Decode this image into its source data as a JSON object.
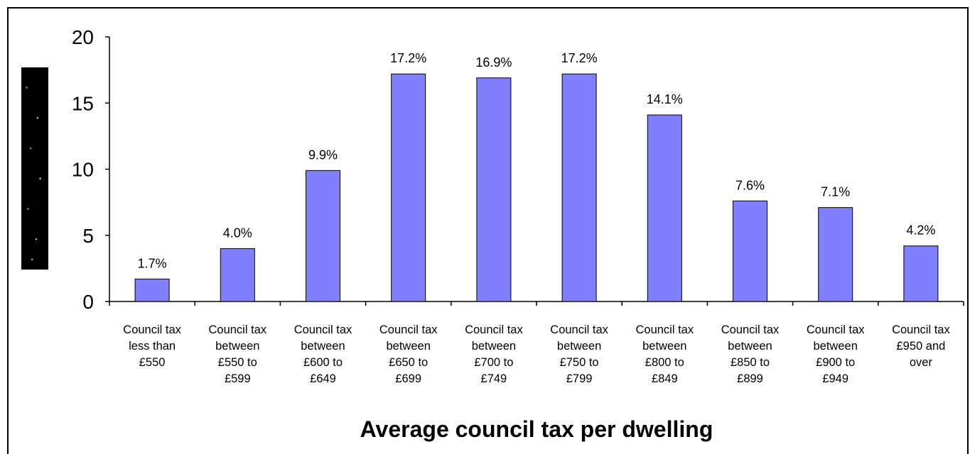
{
  "chart_data": {
    "type": "bar",
    "categories": [
      "Council tax less than £550",
      "Council tax between £550 to £599",
      "Council tax between £600 to £649",
      "Council tax between £650 to £699",
      "Council tax between £700 to £749",
      "Council tax between £750 to £799",
      "Council tax between £800 to £849",
      "Council tax between £850 to £899",
      "Council tax between £900 to £949",
      "Council tax £950 and over"
    ],
    "category_lines": [
      [
        "Council tax",
        "less than",
        "£550"
      ],
      [
        "Council tax",
        "between",
        "£550 to",
        "£599"
      ],
      [
        "Council tax",
        "between",
        "£600 to",
        "£649"
      ],
      [
        "Council tax",
        "between",
        "£650 to",
        "£699"
      ],
      [
        "Council tax",
        "between",
        "£700 to",
        "£749"
      ],
      [
        "Council tax",
        "between",
        "£750 to",
        "£799"
      ],
      [
        "Council tax",
        "between",
        "£800 to",
        "£849"
      ],
      [
        "Council tax",
        "between",
        "£850 to",
        "£899"
      ],
      [
        "Council tax",
        "between",
        "£900 to",
        "£949"
      ],
      [
        "Council tax",
        "£950 and",
        "over"
      ]
    ],
    "values": [
      1.7,
      4.0,
      9.9,
      17.2,
      16.9,
      17.2,
      14.1,
      7.6,
      7.1,
      4.2
    ],
    "data_labels": [
      "1.7%",
      "4.0%",
      "9.9%",
      "17.2%",
      "16.9%",
      "17.2%",
      "14.1%",
      "7.6%",
      "7.1%",
      "4.2%"
    ],
    "yticks": [
      0,
      5,
      10,
      15,
      20
    ],
    "ylim": [
      0,
      20
    ],
    "xlabel": "Average council tax per dwelling",
    "ylabel": "",
    "title": "",
    "bar_color": "#8080ff",
    "grid": false,
    "legend": "none"
  }
}
